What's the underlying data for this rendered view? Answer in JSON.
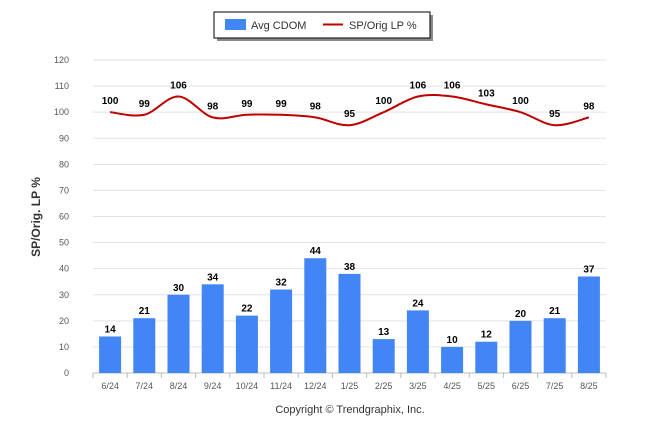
{
  "chart_data": {
    "type": "bar",
    "categories": [
      "6/24",
      "7/24",
      "8/24",
      "9/24",
      "10/24",
      "11/24",
      "12/24",
      "1/25",
      "2/25",
      "3/25",
      "4/25",
      "5/25",
      "6/25",
      "7/25",
      "8/25"
    ],
    "series": [
      {
        "name": "Avg CDOM",
        "type": "bar",
        "color": "#4285f4",
        "values": [
          14,
          21,
          30,
          34,
          22,
          32,
          44,
          38,
          13,
          24,
          10,
          12,
          20,
          21,
          37
        ]
      },
      {
        "name": "SP/Orig LP %",
        "type": "line",
        "color": "#c00000",
        "values": [
          100,
          99,
          106,
          98,
          99,
          99,
          98,
          95,
          100,
          106,
          106,
          103,
          100,
          95,
          98
        ]
      }
    ],
    "xlabel": "",
    "ylabel": "SP/Orig. LP %",
    "ylim": [
      0,
      120
    ],
    "yticks": [
      0,
      10,
      20,
      30,
      40,
      50,
      60,
      70,
      80,
      90,
      100,
      110,
      120
    ],
    "grid": true,
    "legend_position": "top-center",
    "footer": "Copyright © Trendgraphix, Inc."
  }
}
